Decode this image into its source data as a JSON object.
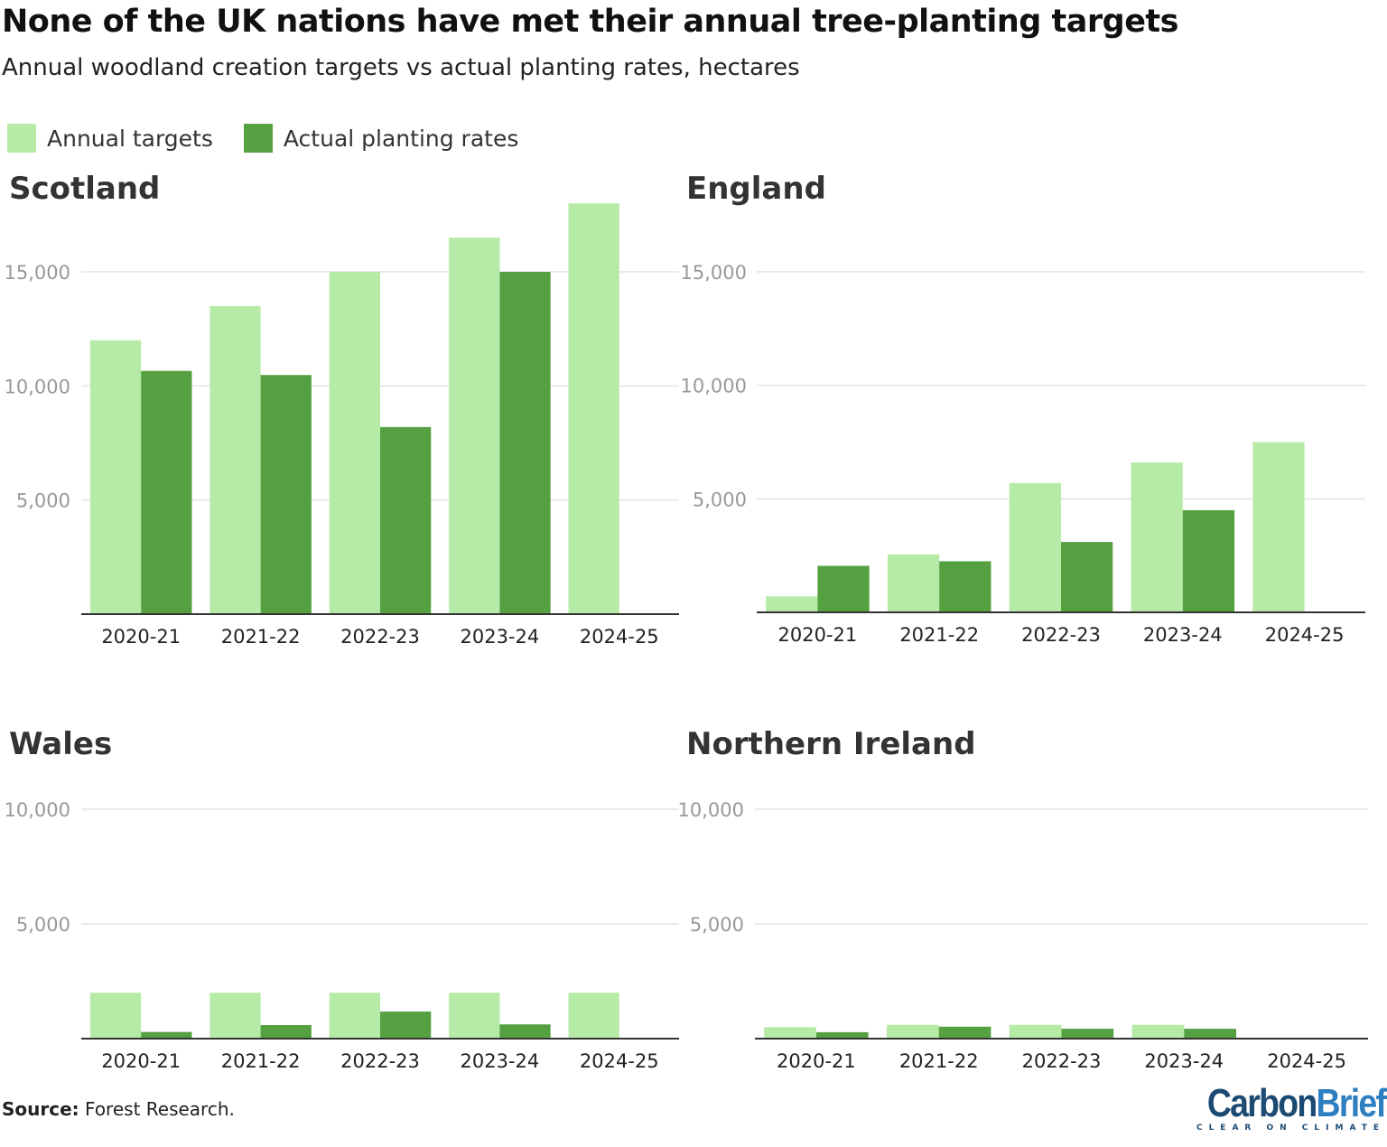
{
  "title": "None of the UK nations have met their annual tree-planting targets",
  "subtitle": "Annual woodland creation targets vs actual planting rates, hectares",
  "colors": {
    "targets": "#b5eba6",
    "actual": "#55a142",
    "grid": "#e3e3e3",
    "axis": "#333333",
    "tick": "#999999"
  },
  "legend": [
    {
      "label": "Annual targets"
    },
    {
      "label": "Actual planting rates"
    }
  ],
  "source_label": "Source:",
  "source_text": " Forest Research.",
  "logo": {
    "part1": "Carbon",
    "part2": "Brief",
    "tagline": "CLEAR ON CLIMATE"
  },
  "chart_data": [
    {
      "type": "bar",
      "title": "Scotland",
      "categories": [
        "2020-21",
        "2021-22",
        "2022-23",
        "2023-24",
        "2024-25"
      ],
      "ylim": [
        0,
        18000
      ],
      "yticks": [
        5000,
        10000,
        15000
      ],
      "ytick_labels": [
        "5,000",
        "10,000",
        "15,000"
      ],
      "grid": true,
      "series": [
        {
          "name": "Annual targets",
          "values": [
            12000,
            13500,
            15000,
            16500,
            18000
          ]
        },
        {
          "name": "Actual planting rates",
          "values": [
            10660,
            10480,
            8200,
            15000,
            null
          ]
        }
      ]
    },
    {
      "type": "bar",
      "title": "England",
      "categories": [
        "2020-21",
        "2021-22",
        "2022-23",
        "2023-24",
        "2024-25"
      ],
      "ylim": [
        0,
        18000
      ],
      "yticks": [
        5000,
        10000,
        15000
      ],
      "ytick_labels": [
        "5,000",
        "10,000",
        "15,000"
      ],
      "grid": true,
      "series": [
        {
          "name": "Annual targets",
          "values": [
            700,
            2550,
            5700,
            6600,
            7500
          ]
        },
        {
          "name": "Actual planting rates",
          "values": [
            2050,
            2250,
            3100,
            4500,
            null
          ]
        }
      ]
    },
    {
      "type": "bar",
      "title": "Wales",
      "categories": [
        "2020-21",
        "2021-22",
        "2022-23",
        "2023-24",
        "2024-25"
      ],
      "ylim": [
        0,
        10000
      ],
      "yticks": [
        5000,
        10000
      ],
      "ytick_labels": [
        "5,000",
        "10,000"
      ],
      "grid": true,
      "series": [
        {
          "name": "Annual targets",
          "values": [
            2000,
            2000,
            2000,
            2000,
            2000
          ]
        },
        {
          "name": "Actual planting rates",
          "values": [
            290,
            590,
            1180,
            620,
            null
          ]
        }
      ]
    },
    {
      "type": "bar",
      "title": "Northern Ireland",
      "categories": [
        "2020-21",
        "2021-22",
        "2022-23",
        "2023-24",
        "2024-25"
      ],
      "ylim": [
        0,
        10000
      ],
      "yticks": [
        5000,
        10000
      ],
      "ytick_labels": [
        "5,000",
        "10,000"
      ],
      "grid": true,
      "series": [
        {
          "name": "Annual targets",
          "values": [
            500,
            600,
            600,
            600,
            null
          ]
        },
        {
          "name": "Actual planting rates",
          "values": [
            280,
            520,
            430,
            430,
            null
          ]
        }
      ]
    }
  ]
}
